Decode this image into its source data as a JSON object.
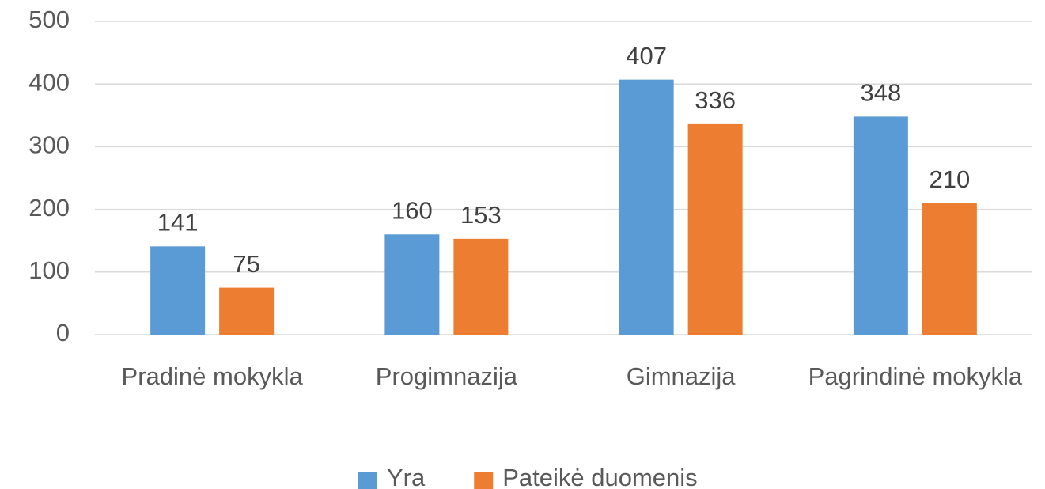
{
  "chart_data": {
    "type": "bar",
    "categories": [
      "Pradinė mokykla",
      "Progimnazija",
      "Gimnazija",
      "Pagrindinė mokykla"
    ],
    "series": [
      {
        "name": "Yra",
        "color": "#5b9bd5",
        "values": [
          141,
          160,
          407,
          348
        ]
      },
      {
        "name": "Pateikė duomenis",
        "color": "#ed7d31",
        "values": [
          75,
          153,
          336,
          210
        ]
      }
    ],
    "ylim": [
      0,
      500
    ],
    "yticks": [
      0,
      100,
      200,
      300,
      400,
      500
    ],
    "grid": true,
    "legend": "bottom"
  }
}
